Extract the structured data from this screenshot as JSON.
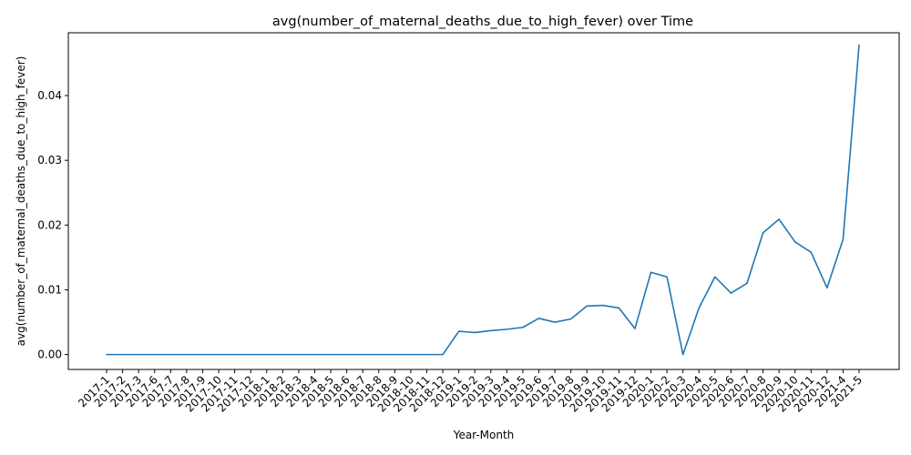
{
  "chart_data": {
    "type": "line",
    "title": "avg(number_of_maternal_deaths_due_to_high_fever) over Time",
    "xlabel": "Year-Month",
    "ylabel": "avg(number_of_maternal_deaths_due_to_high_fever)",
    "ylim": [
      -0.0023,
      0.0497
    ],
    "yticks": [
      0.0,
      0.01,
      0.02,
      0.03,
      0.04
    ],
    "ytick_labels": [
      "0.00",
      "0.01",
      "0.02",
      "0.03",
      "0.04"
    ],
    "grid": false,
    "line_color": "#1f77b4",
    "categories": [
      "2017-1",
      "2017-2",
      "2017-3",
      "2017-6",
      "2017-7",
      "2017-8",
      "2017-9",
      "2017-10",
      "2017-11",
      "2017-12",
      "2018-1",
      "2018-2",
      "2018-3",
      "2018-4",
      "2018-5",
      "2018-6",
      "2018-7",
      "2018-8",
      "2018-9",
      "2018-10",
      "2018-11",
      "2018-12",
      "2019-1",
      "2019-2",
      "2019-3",
      "2019-4",
      "2019-5",
      "2019-6",
      "2019-7",
      "2019-8",
      "2019-9",
      "2019-10",
      "2019-11",
      "2019-12",
      "2020-1",
      "2020-2",
      "2020-3",
      "2020-4",
      "2020-5",
      "2020-6",
      "2020-7",
      "2020-8",
      "2020-9",
      "2020-10",
      "2020-11",
      "2020-12",
      "2021-4",
      "2021-5"
    ],
    "values": [
      0,
      0,
      0,
      0,
      0,
      0,
      0,
      0,
      0,
      0,
      0,
      0,
      0,
      0,
      0,
      0,
      0,
      0,
      0,
      0,
      0,
      0,
      0.0036,
      0.0034,
      0.0037,
      0.0039,
      0.0042,
      0.0056,
      0.005,
      0.0055,
      0.0075,
      0.0076,
      0.0072,
      0.004,
      0.0127,
      0.012,
      0,
      0.0072,
      0.012,
      0.0095,
      0.011,
      0.0188,
      0.0209,
      0.0174,
      0.0158,
      0.0103,
      0.0178,
      0.0478
    ]
  }
}
